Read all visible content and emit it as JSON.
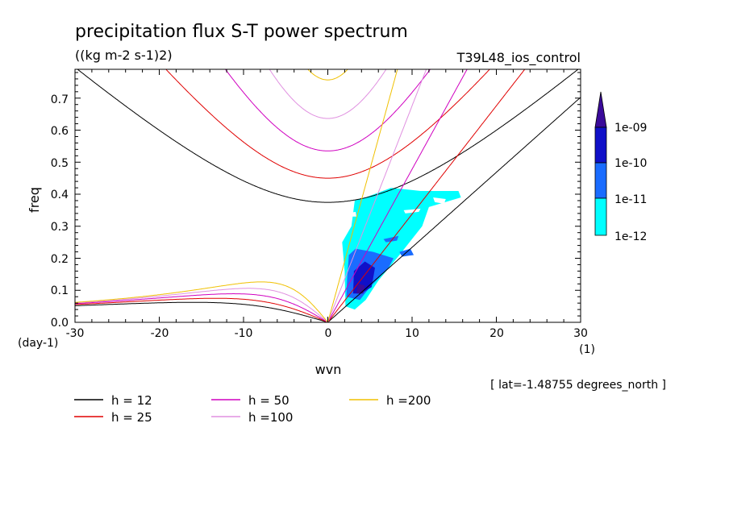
{
  "chart_data": {
    "type": "line",
    "title": "precipitation flux S-T power spectrum",
    "units": "((kg m-2 s-1)2)",
    "experiment": "T39L48_ios_control",
    "xlabel": "wvn",
    "ylabel": "freq",
    "y_unit": "(day-1)",
    "x_unit": "(1)",
    "xlim": [
      -30,
      30
    ],
    "ylim": [
      0,
      0.79
    ],
    "x_ticks": [
      "-30",
      "-20",
      "-10",
      "0",
      "10",
      "20",
      "30"
    ],
    "y_ticks": [
      "0.0",
      "0.1",
      "0.2",
      "0.3",
      "0.4",
      "0.5",
      "0.6",
      "0.7"
    ],
    "latitude_note": "[ lat=-1.48755 degrees_north ]",
    "series": [
      {
        "name": "h = 12",
        "h": 12,
        "color": "#000000"
      },
      {
        "name": "h = 25",
        "h": 25,
        "color": "#e00000"
      },
      {
        "name": "h = 50",
        "h": 50,
        "color": "#d000c0"
      },
      {
        "name": "h =100",
        "h": 100,
        "color": "#e090e0"
      },
      {
        "name": "h =200",
        "h": 200,
        "color": "#f0c000"
      }
    ],
    "colorbar": {
      "labels": [
        "1e-09",
        "1e-10",
        "1e-11",
        "1e-12"
      ],
      "colors": [
        "#3a0a9a",
        "#1010c8",
        "#1a6cff",
        "#00ffff"
      ]
    },
    "shading_note": "power spectrum contours (1e-12 to 1e-09) concentrated at eastward wavenumbers 2-16, freq 0.05-0.42"
  }
}
